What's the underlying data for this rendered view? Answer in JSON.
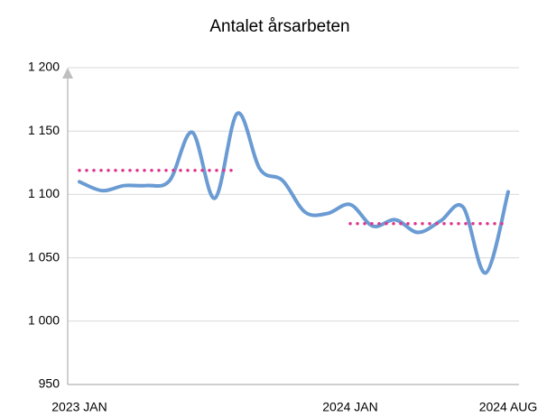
{
  "chart_data": {
    "type": "line",
    "title": "Antalet årsarbeten",
    "categories": [
      "2023 JAN",
      null,
      null,
      null,
      null,
      null,
      null,
      null,
      null,
      null,
      null,
      null,
      "2024 JAN",
      null,
      null,
      null,
      null,
      null,
      null,
      "2024 AUG"
    ],
    "series": [
      {
        "color": "#6a9bd3",
        "style": "smooth",
        "values": [
          1110,
          1103,
          1107,
          1107,
          1111,
          1149,
          1097,
          1164,
          1120,
          1111,
          1086,
          1085,
          1092,
          1075,
          1080,
          1070,
          1079,
          1090,
          1038,
          1102
        ]
      },
      {
        "color": "#e0358f",
        "style": "dotted",
        "values": [
          1119,
          1119,
          1119,
          1119,
          1119,
          1119,
          1119,
          1119,
          null,
          null,
          null,
          null,
          1077,
          1077,
          1077,
          1077,
          1077,
          1077,
          1077,
          1077
        ]
      }
    ],
    "ylim": [
      950,
      1200
    ],
    "yticks": [
      950,
      {
        "value": 1000,
        "label": "1 000"
      },
      {
        "value": 1050,
        "label": "1 050"
      },
      {
        "value": 1100,
        "label": "1 100"
      },
      {
        "value": 1150,
        "label": "1 150"
      },
      {
        "value": 1200,
        "label": "1 200"
      }
    ],
    "grid": true
  }
}
